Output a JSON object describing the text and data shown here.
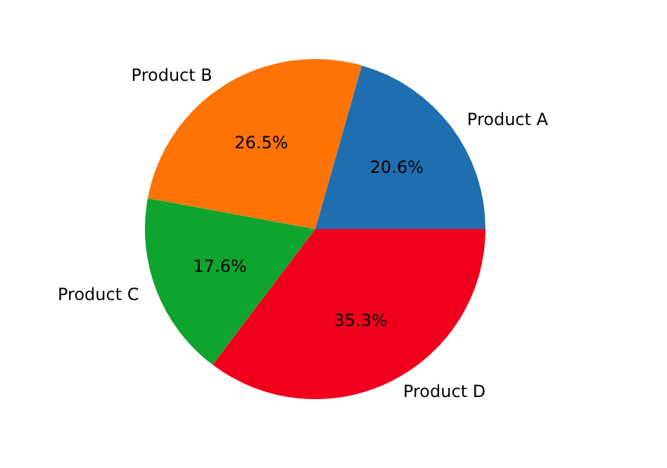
{
  "chart_data": {
    "type": "pie",
    "categories": [
      "Product A",
      "Product B",
      "Product C",
      "Product D"
    ],
    "values": [
      20.6,
      26.5,
      17.6,
      35.3
    ],
    "colors": [
      "#1f6eb0",
      "#fd7306",
      "#0ea42e",
      "#f0001c"
    ],
    "value_labels": [
      "20.6%",
      "26.5%",
      "17.6%",
      "35.3%"
    ],
    "legend": false
  }
}
